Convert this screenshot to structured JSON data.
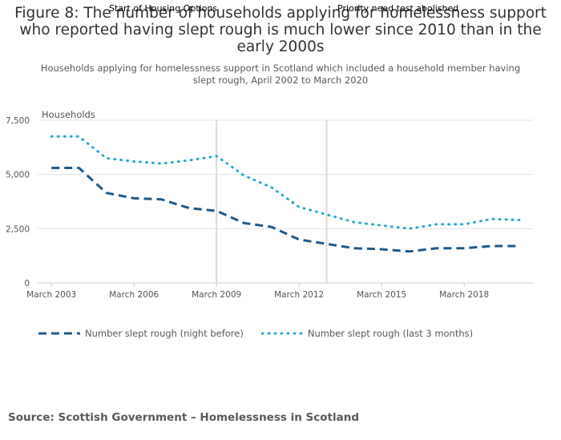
{
  "title": "Figure 8: The number of households applying for homelessness support who reported having slept rough is much lower since 2010 than in the early 2000s",
  "annotations": [
    {
      "label": "Start of Housing Options",
      "x": 2009.0
    },
    {
      "label": "Priority need test abolished",
      "x": 2013.0
    }
  ],
  "chart_data": {
    "type": "line",
    "title": "Figure 8: The number of households applying for homelessness support who reported having slept rough is much lower since 2010 than in the early 2000s",
    "subtitle": "Households applying for homelessness support in Scotland which included a household member having slept rough, April 2002 to March 2020",
    "ylabel": "Households",
    "xlabel": "",
    "ylim": [
      0,
      7500
    ],
    "xlim": [
      2002.5,
      2020.5
    ],
    "yticks": [
      0,
      2500,
      5000,
      7500
    ],
    "ytick_labels": [
      "0",
      "2,500",
      "5,000",
      "7,500"
    ],
    "xticks": [
      2003,
      2006,
      2009,
      2012,
      2015,
      2018
    ],
    "xtick_labels": [
      "March 2003",
      "March 2006",
      "March 2009",
      "March 2012",
      "March 2015",
      "March 2018"
    ],
    "x": [
      2003,
      2004,
      2005,
      2006,
      2007,
      2008,
      2009,
      2010,
      2011,
      2012,
      2013,
      2014,
      2015,
      2016,
      2017,
      2018,
      2019,
      2020
    ],
    "series": [
      {
        "name": "Number slept rough (night before)",
        "color": "#1f5a8a",
        "style": "dashed",
        "values": [
          5300,
          5300,
          4150,
          3900,
          3850,
          3450,
          3320,
          2760,
          2580,
          2000,
          1800,
          1600,
          1550,
          1450,
          1600,
          1600,
          1700,
          1700
        ]
      },
      {
        "name": "Number slept rough (last 3 months)",
        "color": "#2aa6d0",
        "style": "dotted",
        "values": [
          6750,
          6750,
          5750,
          5600,
          5500,
          5650,
          5850,
          4950,
          4400,
          3500,
          3150,
          2800,
          2650,
          2500,
          2700,
          2700,
          2950,
          2900
        ]
      }
    ],
    "grid": true,
    "legend": "bottom-left"
  },
  "source": "Source: Scottish Government – Homelessness in Scotland"
}
